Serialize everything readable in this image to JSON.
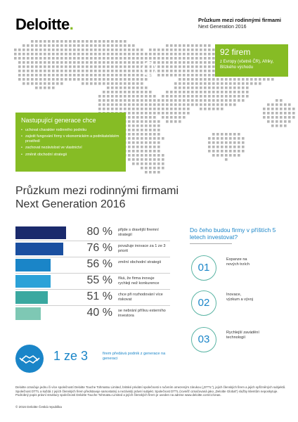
{
  "header": {
    "logo": "Deloitte",
    "logo_dot": ".",
    "title": "Průzkum mezi rodinnými firmami",
    "subtitle": "Next Generation 2016"
  },
  "map_callout": {
    "big": "92 firem",
    "small": "z Evropy (včetně ČR), Afriky, Blízkého východu"
  },
  "next_gen": {
    "title": "Nastupující generace chce",
    "items": [
      "uchovat charakter rodinného podniku",
      "zajistit fungování firmy v ekonomickém a podnikatelském prostředí",
      "zachovat nezávislost ve vlastnictví",
      "změnit obchodní strategii"
    ]
  },
  "main_title": {
    "line1": "Průzkum mezi rodinnými firmami",
    "line2": "Next Generation 2016"
  },
  "stats": [
    {
      "value": "80 %",
      "text": "přijde s dravější firemní strategií",
      "color": "#1a2a6c",
      "fill": 0.8
    },
    {
      "value": "76 %",
      "text": "považuje inovace za 1 ze 3 priorit",
      "color": "#1a4fa0",
      "fill": 0.76
    },
    {
      "value": "56 %",
      "text": "změní obchodní strategii",
      "color": "#1a85c8",
      "fill": 0.56
    },
    {
      "value": "55 %",
      "text": "říká, že firma inovuje rychleji než konkurence",
      "color": "#2ba2d8",
      "fill": 0.55
    },
    {
      "value": "51 %",
      "text": "chce při rozhodování více riskovat",
      "color": "#3aa8a0",
      "fill": 0.51
    },
    {
      "value": "40 %",
      "text": "se nebrání přílivu externího investora",
      "color": "#7ec8b4",
      "fill": 0.4
    }
  ],
  "invest": {
    "question": "Do čeho budou firmy v příštích 5 letech investovat?",
    "items": [
      {
        "num": "01",
        "text": "Expanze na nových trzích"
      },
      {
        "num": "02",
        "text": "Inovace, výzkum a vývoj"
      },
      {
        "num": "03",
        "text": "Rychlejší zavádění technologií"
      }
    ]
  },
  "one_in_three": {
    "value": "1 ze 3",
    "text": "firem předává podnik z generace na generaci"
  },
  "footnote": "Deloitte označuje jednu či více společností Deloitte Touche Tohmatsu Limited, britské privátní společnosti s ručením omezeným zárukou („DTTL“), jejich členských firem a jejich spřízněných subjektů. Společnost DTTL a každá z jejích členských firem představuje samostatný a nezávislý právní subjekt. Společnost DTTL (rovněž označovaná jako „Deloitte Global“) služby klientům neposkytuje. Podrobný popis právní struktury společnosti Deloitte Touche Tohmatsu Limited a jejích členských firem je uveden na adrese www.deloitte.com/cz/onas.",
  "copyright": "© 2016 Deloitte Česká republika",
  "colors": {
    "green": "#86bc25",
    "blue": "#1a85c8",
    "teal": "#5ab4a4"
  }
}
